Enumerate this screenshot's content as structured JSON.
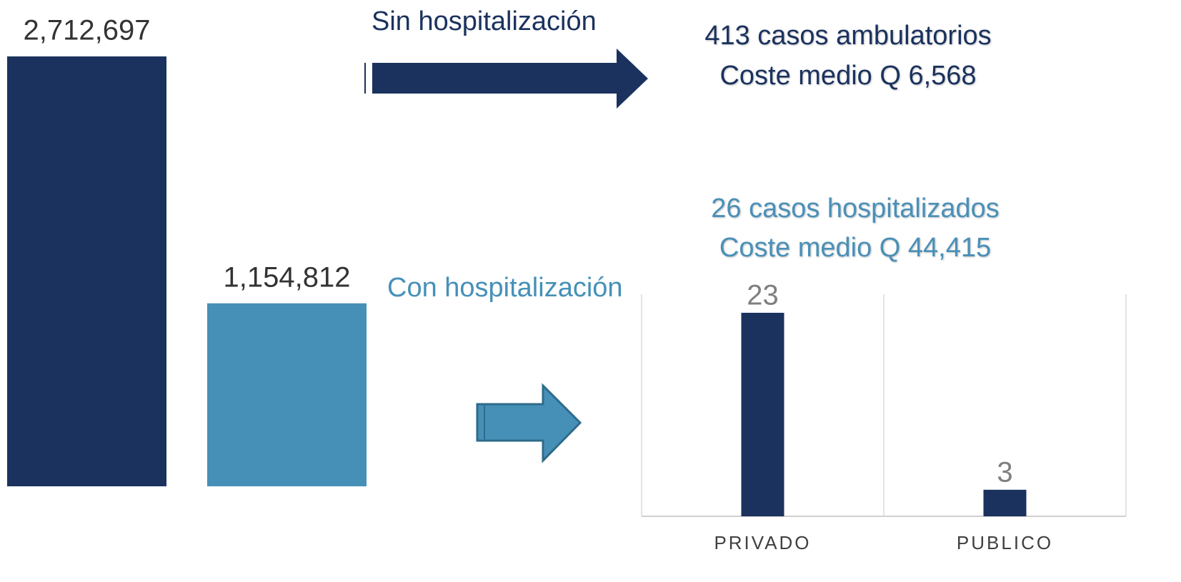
{
  "chart_data": [
    {
      "type": "bar",
      "values": [
        2712697,
        1154812
      ],
      "value_labels": [
        "2,712,697",
        "1,154,812"
      ],
      "colors": [
        "#1b325e",
        "#4690b8"
      ]
    },
    {
      "type": "bar",
      "categories": [
        "PRIVADO",
        "PUBLICO"
      ],
      "values": [
        23,
        3
      ],
      "color": "#1b325e"
    }
  ],
  "annotations": {
    "without": {
      "label": "Sin hospitalización",
      "cases": "413 casos ambulatorios",
      "cost": "Coste medio Q 6,568"
    },
    "with": {
      "label": "Con hospitalización",
      "cases": "26 casos hospitalizados",
      "cost": "Coste medio Q 44,415"
    }
  }
}
